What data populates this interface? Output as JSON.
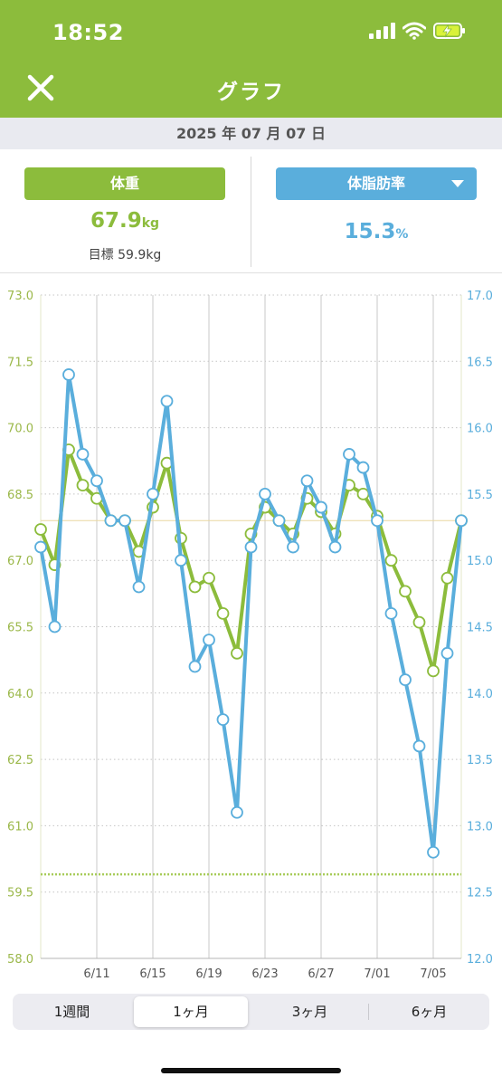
{
  "status_bar": {
    "time": "18:52"
  },
  "header": {
    "title": "グラフ"
  },
  "date": "2025 年 07 月 07 日",
  "summary": {
    "weight": {
      "label": "体重",
      "value": "67.9",
      "unit": "kg",
      "target_label": "目標",
      "target_value": "59.9kg"
    },
    "body_fat": {
      "label": "体脂肪率",
      "value": "15.3",
      "unit": "%"
    }
  },
  "colors": {
    "brand_green": "#8cbc3c",
    "weight_line": "#8cbc3c",
    "fat_line": "#5aaedc",
    "header_bg": "#8cbc3c"
  },
  "icons": {
    "close": "close-icon",
    "dropdown": "chevron-down-icon",
    "signal": "signal-icon",
    "wifi": "wifi-icon",
    "battery": "battery-charging-icon"
  },
  "chart_data": {
    "type": "line",
    "title": "",
    "x_ticks": [
      "6/11",
      "6/15",
      "6/19",
      "6/23",
      "6/27",
      "7/01",
      "7/05"
    ],
    "x_tick_index": [
      4,
      8,
      12,
      16,
      20,
      24,
      28
    ],
    "y_left": {
      "ylim": [
        58.0,
        73.0
      ],
      "ticks": [
        "58.0",
        "59.5",
        "61.0",
        "62.5",
        "64.0",
        "65.5",
        "67.0",
        "68.5",
        "70.0",
        "71.5",
        "73.0"
      ]
    },
    "y_right": {
      "ylim": [
        12.0,
        17.0
      ],
      "ticks": [
        "12.0",
        "12.5",
        "13.0",
        "13.5",
        "14.0",
        "14.5",
        "15.0",
        "15.5",
        "16.0",
        "16.5",
        "17.0"
      ]
    },
    "reference_lines": {
      "weight_target": 59.9,
      "current_weight": 67.9
    },
    "series": [
      {
        "axis": "left",
        "color": "#8cbc3c",
        "values": [
          67.7,
          66.9,
          69.5,
          68.7,
          68.4,
          67.9,
          67.9,
          67.2,
          68.2,
          69.2,
          67.5,
          66.4,
          66.6,
          65.8,
          64.9,
          67.6,
          68.2,
          67.9,
          67.6,
          68.4,
          68.1,
          67.6,
          68.7,
          68.5,
          68.0,
          67.0,
          66.3,
          65.6,
          64.5,
          66.6,
          67.9
        ]
      },
      {
        "axis": "right",
        "color": "#5aaedc",
        "values": [
          15.1,
          14.5,
          16.4,
          15.8,
          15.6,
          15.3,
          15.3,
          14.8,
          15.5,
          16.2,
          15.0,
          14.2,
          14.4,
          13.8,
          13.1,
          15.1,
          15.5,
          15.3,
          15.1,
          15.6,
          15.4,
          15.1,
          15.8,
          15.7,
          15.3,
          14.6,
          14.1,
          13.6,
          12.8,
          14.3,
          15.3
        ]
      }
    ]
  },
  "period_tabs": [
    "1週間",
    "1ヶ月",
    "3ヶ月",
    "6ヶ月"
  ],
  "active_tab": 1
}
